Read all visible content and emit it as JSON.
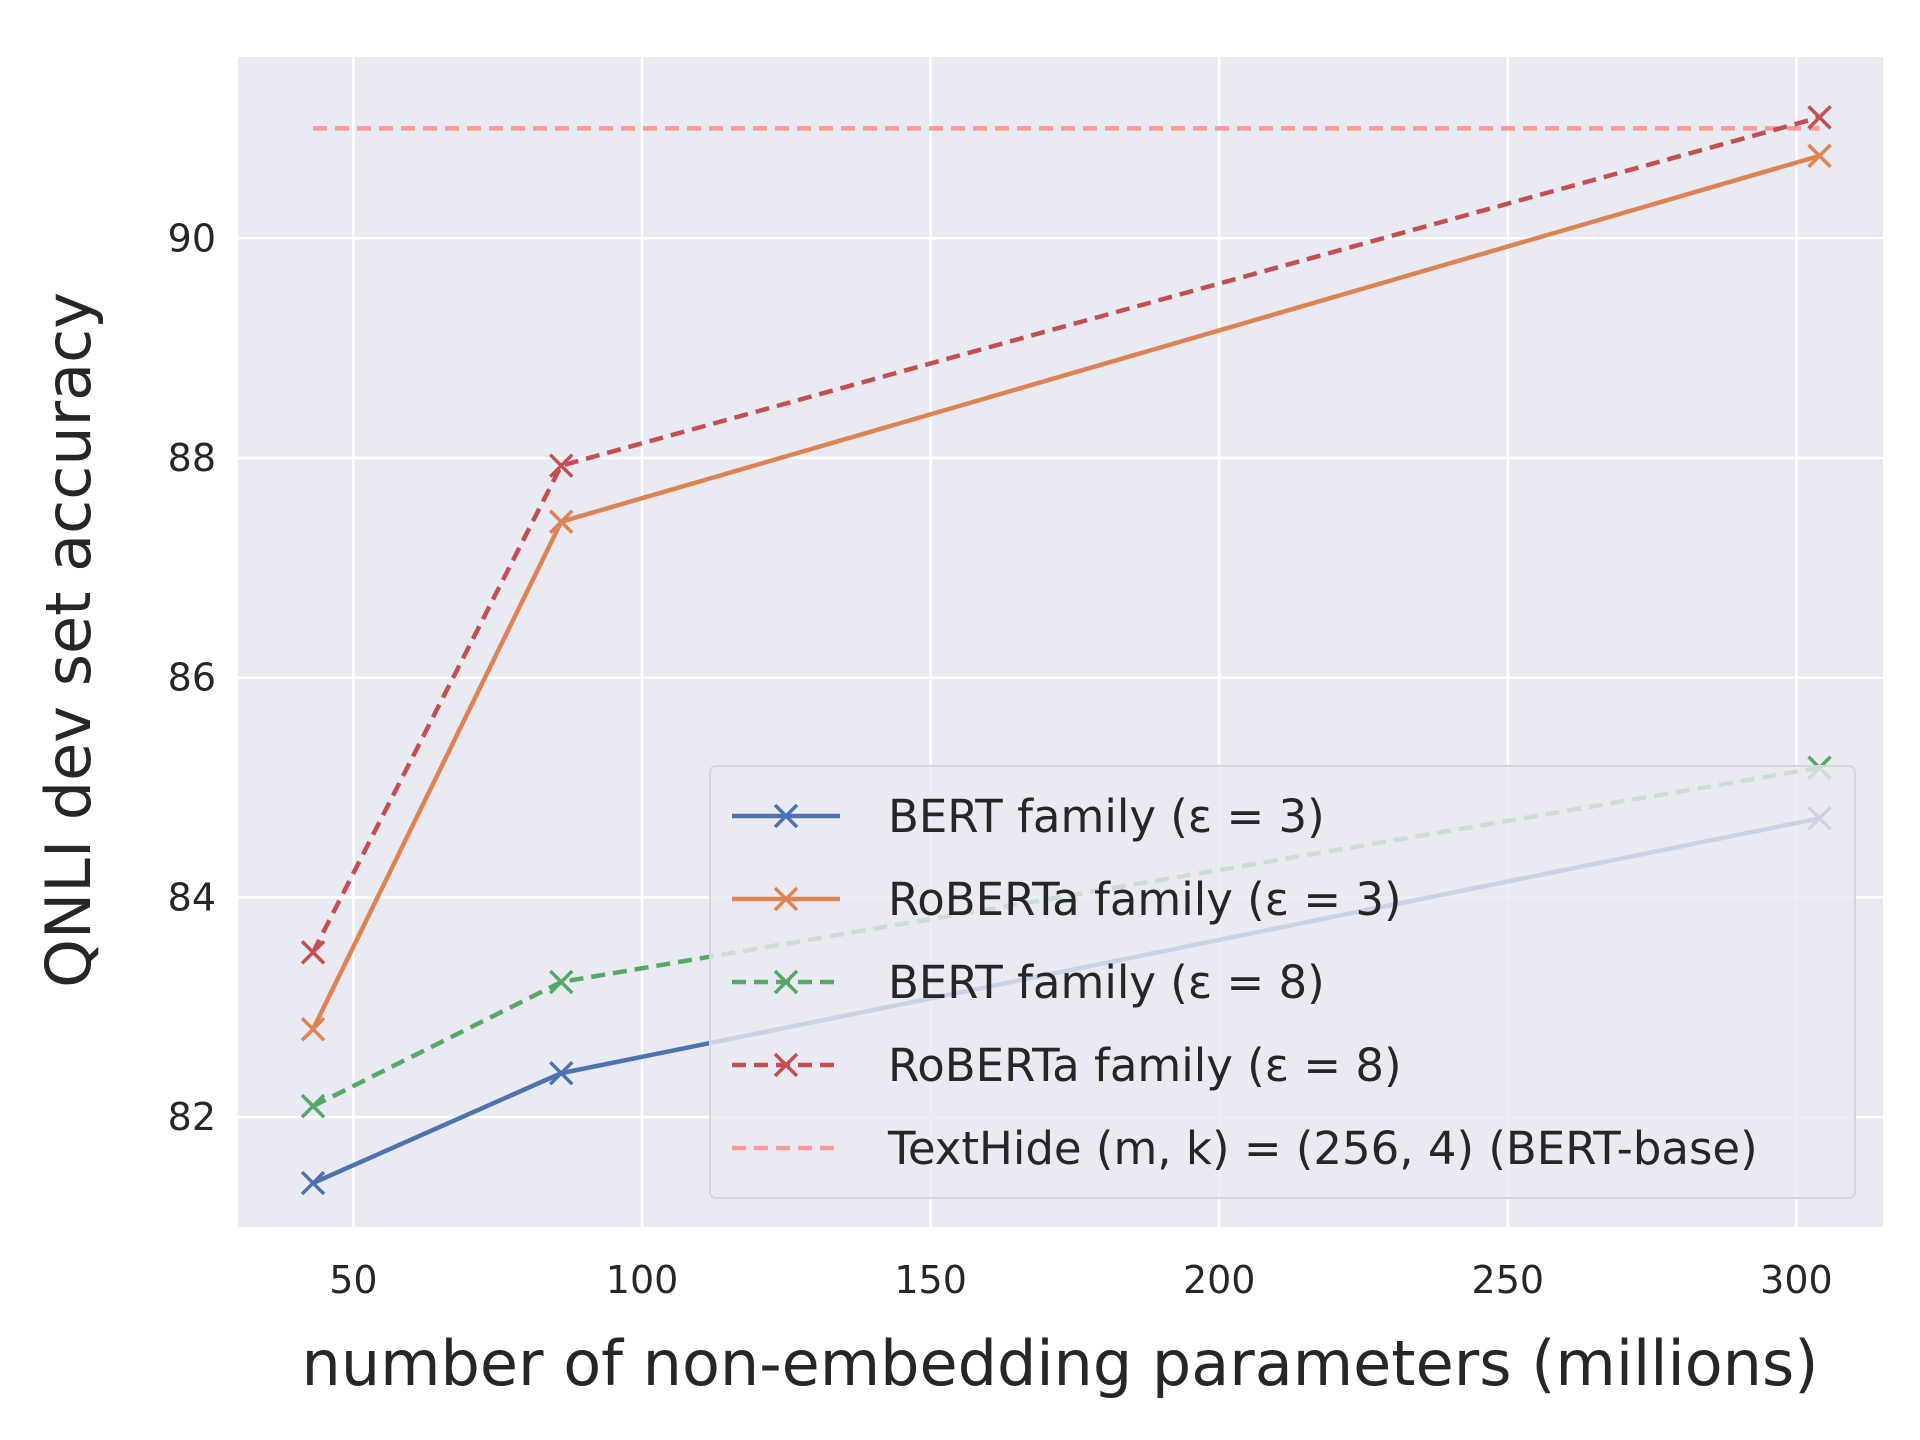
{
  "chart_data": {
    "type": "line",
    "title": "",
    "xlabel": "number of non-embedding parameters (millions)",
    "ylabel": "QNLI dev set accuracy",
    "xlim": [
      30,
      315
    ],
    "ylim": [
      81,
      91.65
    ],
    "xticks": [
      50,
      100,
      150,
      200,
      250,
      300
    ],
    "yticks": [
      82,
      84,
      86,
      88,
      90
    ],
    "grid": true,
    "background": "#eaeaf2",
    "legend_position": "lower right",
    "series": [
      {
        "name": "BERT family (ε = 3)",
        "color": "#4c72b0",
        "dash": "solid",
        "marker": "x",
        "x": [
          43,
          86,
          304
        ],
        "y": [
          81.4,
          82.4,
          84.72
        ]
      },
      {
        "name": "RoBERTa family (ε = 3)",
        "color": "#dd8452",
        "dash": "solid",
        "marker": "x",
        "x": [
          43,
          86,
          304
        ],
        "y": [
          82.8,
          87.42,
          90.75
        ]
      },
      {
        "name": "BERT family (ε = 8)",
        "color": "#55a868",
        "dash": "dashed",
        "marker": "x",
        "x": [
          43,
          86,
          304
        ],
        "y": [
          82.1,
          83.23,
          85.18
        ]
      },
      {
        "name": "RoBERTa family (ε = 8)",
        "color": "#c44e52",
        "dash": "dashed",
        "marker": "x",
        "x": [
          43,
          86,
          304
        ],
        "y": [
          83.5,
          87.93,
          91.1
        ]
      },
      {
        "name": "TextHide (m, k) = (256, 4) (BERT-base)",
        "color": "#ff9896",
        "dash": "dashed",
        "marker": "none",
        "x": [
          43,
          304
        ],
        "y": [
          91.0,
          91.0
        ]
      }
    ]
  }
}
